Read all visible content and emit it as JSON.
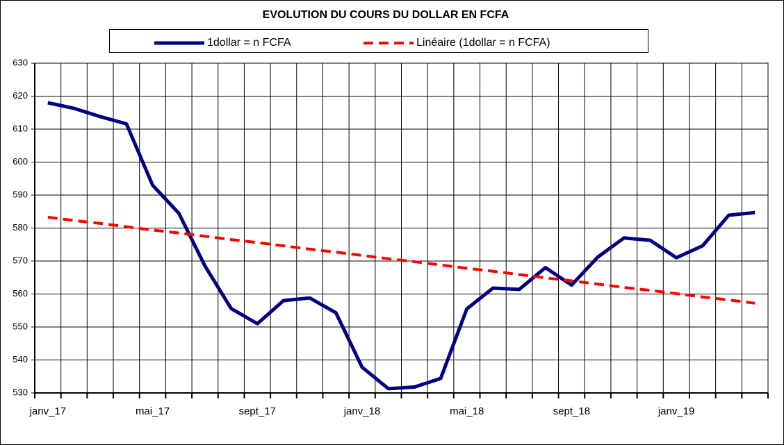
{
  "chart_data": {
    "type": "line",
    "title": "EVOLUTION DU COURS DU DOLLAR EN  FCFA",
    "categories": [
      "janv_17",
      null,
      null,
      null,
      "mai_17",
      null,
      null,
      null,
      "sept_17",
      null,
      null,
      null,
      "janv_18",
      null,
      null,
      null,
      "mai_18",
      null,
      null,
      null,
      "sept_18",
      null,
      null,
      null,
      "janv_19",
      null,
      null,
      null
    ],
    "series": [
      {
        "name": "1dollar = n FCFA",
        "color": "#000080",
        "dashed": false,
        "values": [
          618,
          616.3,
          613.8,
          611.6,
          593,
          584.5,
          568.5,
          555.6,
          551,
          558,
          558.8,
          554.3,
          537.8,
          531.3,
          531.8,
          534.4,
          555.5,
          561.8,
          561.4,
          568,
          562.7,
          571.2,
          577,
          576.3,
          571,
          574.6,
          583.9,
          584.7
        ]
      },
      {
        "name": "Linéaire (1dollar = n FCFA)",
        "color": "#ff0000",
        "dashed": true,
        "values": [
          583.3,
          582.3,
          581.4,
          580.4,
          579.4,
          578.5,
          577.5,
          576.5,
          575.6,
          574.6,
          573.6,
          572.7,
          571.7,
          570.7,
          569.8,
          568.8,
          567.8,
          566.9,
          565.9,
          564.9,
          564,
          563,
          562,
          561.1,
          560.1,
          559.1,
          558.2,
          557.2
        ]
      }
    ],
    "ylim": [
      530,
      630
    ],
    "yticks": [
      530,
      540,
      550,
      560,
      570,
      580,
      590,
      600,
      610,
      620,
      630
    ],
    "grid": true,
    "legend": "top"
  }
}
